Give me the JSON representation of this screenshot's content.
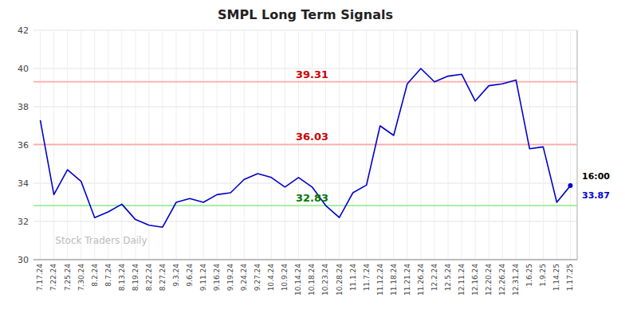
{
  "chart_data": {
    "type": "line",
    "title": "SMPL Long Term Signals",
    "categories": [
      "7.17.24",
      "7.22.24",
      "7.25.24",
      "7.30.24",
      "8.2.24",
      "8.7.24",
      "8.13.24",
      "8.19.24",
      "8.22.24",
      "8.27.24",
      "9.3.24",
      "9.6.24",
      "9.11.24",
      "9.16.24",
      "9.19.24",
      "9.24.24",
      "9.27.24",
      "10.4.24",
      "10.9.24",
      "10.14.24",
      "10.18.24",
      "10.23.24",
      "10.28.24",
      "11.1.24",
      "11.7.24",
      "11.12.24",
      "11.18.24",
      "11.21.24",
      "11.26.24",
      "12.2.24",
      "12.5.24",
      "12.11.24",
      "12.16.24",
      "12.20.24",
      "12.26.24",
      "12.31.24",
      "1.6.25",
      "1.9.25",
      "1.14.25",
      "1.17.25"
    ],
    "values": [
      37.3,
      33.4,
      34.7,
      34.1,
      32.2,
      32.5,
      32.9,
      32.1,
      31.8,
      31.7,
      33.0,
      33.2,
      33.0,
      33.4,
      33.5,
      34.2,
      34.5,
      34.3,
      33.8,
      34.3,
      33.8,
      32.83,
      32.2,
      33.5,
      33.9,
      37.0,
      36.5,
      39.2,
      40.0,
      39.3,
      39.6,
      39.7,
      38.3,
      39.1,
      39.2,
      39.4,
      35.8,
      35.9,
      33.0,
      33.87
    ],
    "color": "#0000cc",
    "ylim": [
      30,
      42
    ],
    "yticks": [
      30,
      32,
      34,
      36,
      38,
      40,
      42
    ],
    "grid": true,
    "reference_lines": [
      {
        "value": 39.31,
        "label": "39.31",
        "color": "#ffaaaa",
        "label_color": "#cc0000"
      },
      {
        "value": 36.03,
        "label": "36.03",
        "color": "#ffaaaa",
        "label_color": "#cc0000"
      },
      {
        "value": 32.83,
        "label": "32.83",
        "color": "#99ee99",
        "label_color": "#007700"
      }
    ],
    "end_labels": [
      {
        "text": "16:00"
      },
      {
        "text": "33.87",
        "color": "#0000cc"
      }
    ],
    "watermark": "Stock Traders Daily"
  }
}
